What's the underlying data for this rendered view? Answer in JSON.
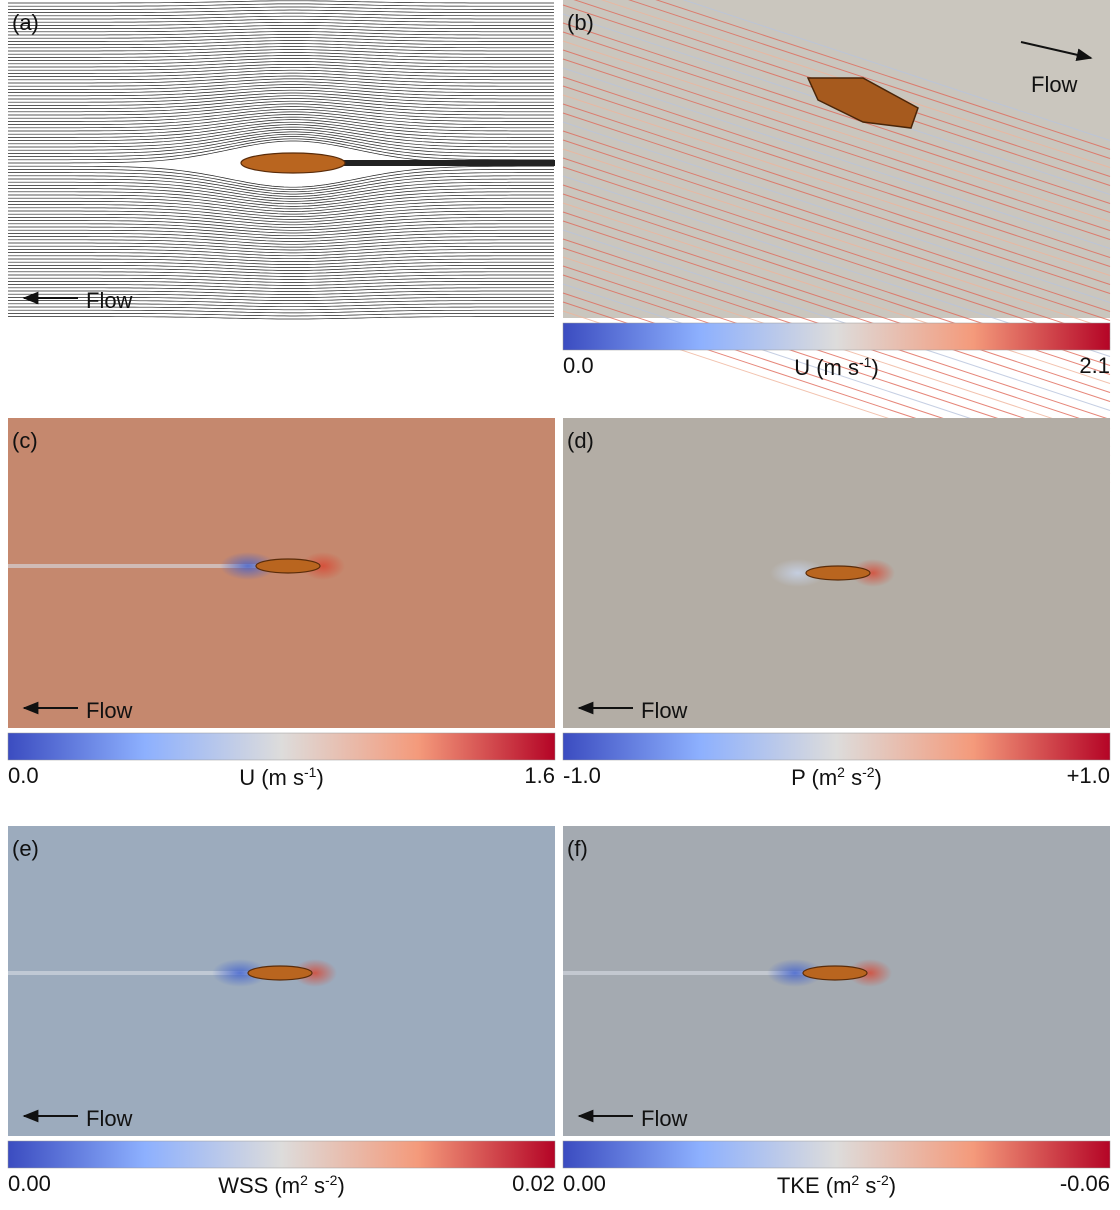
{
  "panels": [
    {
      "label": "(a)",
      "flow_label": "Flow"
    },
    {
      "label": "(b)",
      "flow_label": "Flow",
      "colorbar": {
        "min": {
          "value": 0,
          "label": "0.0"
        },
        "max": {
          "value": 2.1,
          "label": "2.1"
        },
        "title": [
          {
            "text": "U (m s"
          },
          {
            "sup": "-1"
          },
          {
            "text": ")"
          }
        ]
      }
    },
    {
      "label": "(c)",
      "flow_label": "Flow",
      "colorbar": {
        "min": {
          "value": 0,
          "label": "0.0"
        },
        "max": {
          "value": 1.6,
          "label": "1.6"
        },
        "title": [
          {
            "text": "U (m s"
          },
          {
            "sup": "-1"
          },
          {
            "text": ")"
          }
        ]
      }
    },
    {
      "label": "(d)",
      "flow_label": "Flow",
      "colorbar": {
        "min": {
          "value": -1,
          "label": "-1.0"
        },
        "max": {
          "value": 1,
          "label": "+1.0"
        },
        "title": [
          {
            "text": "P (m"
          },
          {
            "sup": "2"
          },
          {
            "text": " s"
          },
          {
            "sup": "-2"
          },
          {
            "text": ")"
          }
        ]
      }
    },
    {
      "label": "(e)",
      "flow_label": "Flow",
      "colorbar": {
        "min": {
          "value": 0,
          "label": "0.00"
        },
        "max": {
          "value": 0.02,
          "label": "0.02"
        },
        "title": [
          {
            "text": "WSS (m"
          },
          {
            "sup": "2"
          },
          {
            "text": " s"
          },
          {
            "sup": "-2"
          },
          {
            "text": ")"
          }
        ]
      }
    },
    {
      "label": "(f)",
      "flow_label": "Flow",
      "colorbar": {
        "min": {
          "value": 0,
          "label": "0.00"
        },
        "max": {
          "value": -0.06,
          "label": "-0.06"
        },
        "title": [
          {
            "text": "TKE (m"
          },
          {
            "sup": "2"
          },
          {
            "text": " s"
          },
          {
            "sup": "-2"
          },
          {
            "text": ")"
          }
        ]
      }
    }
  ]
}
